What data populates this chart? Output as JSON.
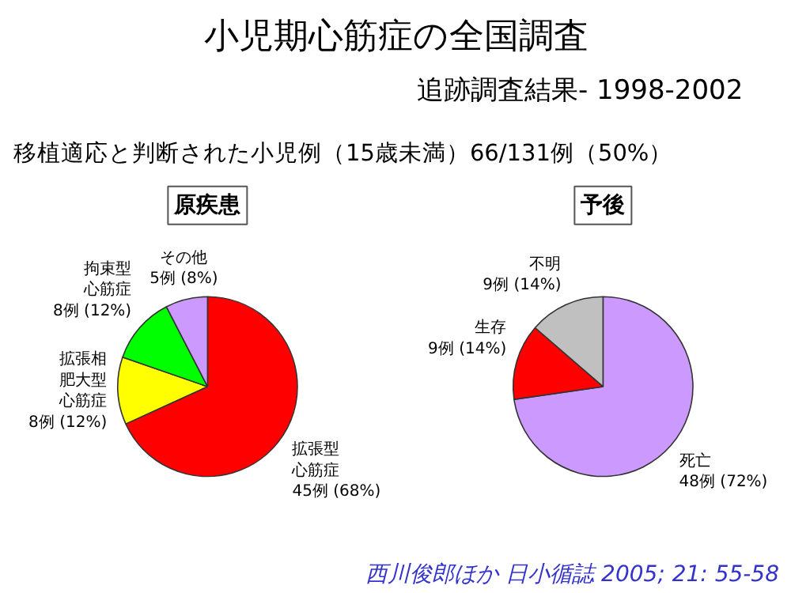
{
  "chart_data": [
    {
      "type": "other",
      "title": "小児期心筋症の全国調査",
      "subtitle": "追跡調査結果-   1998-2002",
      "annotations": [
        "移植適応と判断された小児例（15歳未満）66/131例（50%）",
        "西川俊郎ほか 日小循誌 2005; 21: 55-58"
      ]
    },
    {
      "type": "pie",
      "title": "原疾患",
      "categories": [
        "拡張型心筋症",
        "拡張相肥大型心筋症",
        "拘束型心筋症",
        "その他"
      ],
      "values": [
        45,
        8,
        8,
        5
      ],
      "colors": [
        "#ff0000",
        "#ffff00",
        "#00ff00",
        "#cc99ff"
      ],
      "value_labels": [
        "45例 (68%)",
        "8例 (12%)",
        "8例 (12%)",
        "5例 (8%)"
      ]
    },
    {
      "type": "pie",
      "title": "予後",
      "categories": [
        "死亡",
        "生存",
        "不明"
      ],
      "values": [
        48,
        9,
        9
      ],
      "colors": [
        "#cc99ff",
        "#ff0000",
        "#c0c0c0"
      ],
      "value_labels": [
        "48例 (72%)",
        "9例 (14%)",
        "9例 (14%)"
      ]
    }
  ]
}
